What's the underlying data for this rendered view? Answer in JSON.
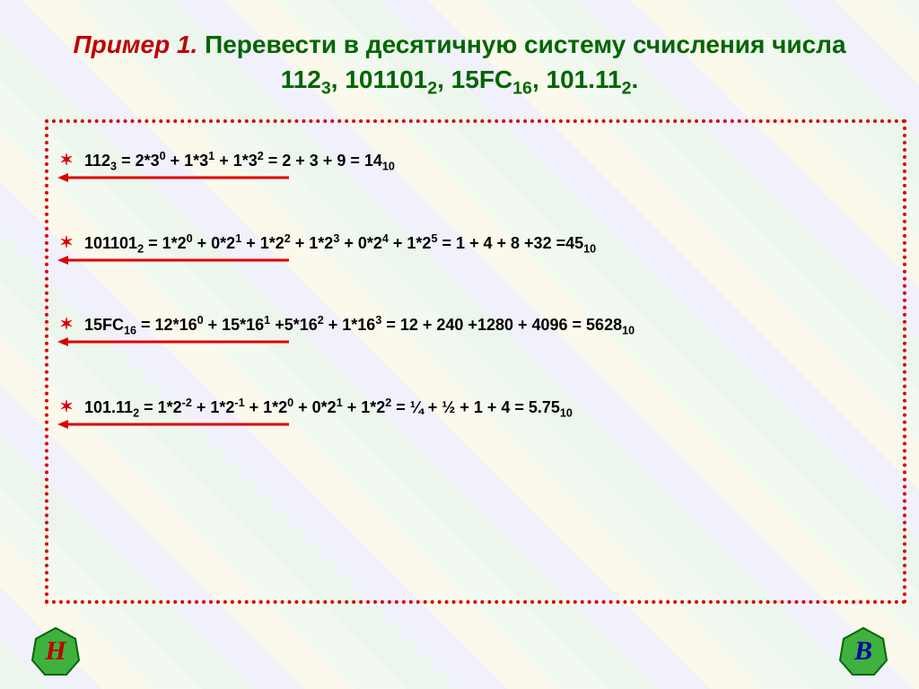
{
  "title": {
    "lead": "Пример 1.",
    "rest_html": "  Перевести  в  десятичную  систему счисления числа 112<span class='sub'>3</span>, 101101<span class='sub'>2</span>, 15FC<span class='sub'>16</span>, 101.11<span class='sub'>2</span>."
  },
  "lines": [
    "112<span class='sub'>3</span> = 2*3<span class='sup'>0</span> + 1*3<span class='sup'>1</span> + 1*3<span class='sup'>2</span> = 2 + 3 + 9 = 14<span class='sub'>10</span>",
    "101101<span class='sub'>2</span> = 1*2<span class='sup'>0</span> + 0*2<span class='sup'>1</span> + 1*2<span class='sup'>2</span> + 1*2<span class='sup'>3</span> + 0*2<span class='sup'>4</span> + 1*2<span class='sup'>5</span> = 1 + 4 + 8 +32 =45<span class='sub'>10</span>",
    "15FC<span class='sub'>16</span> = 12*16<span class='sup'>0</span> + 15*16<span class='sup'>1</span> +5*16<span class='sup'>2</span> + 1*16<span class='sup'>3</span> = 12 + 240 +1280 + 4096 = 5628<span class='sub'>10</span>",
    "101.11<span class='sub'>2</span> = 1*2<span class='sup'>-2</span> + 1*2<span class='sup'>-1</span> + 1*2<span class='sup'>0</span> + 0*2<span class='sup'>1</span> + 1*2<span class='sup'>2</span> = ¼ + ½ + 1 + 4 = 5.75<span class='sub'>10</span>"
  ],
  "nav": {
    "left": "Н",
    "right": "В"
  },
  "colors": {
    "title_lead": "#c00000",
    "title_rest": "#006600",
    "border": "#dd0000",
    "arrow": "#dd0000",
    "text": "#000000",
    "badge_left_fill": "#3fb13f",
    "badge_right_fill": "#3fb13f",
    "badge_stroke": "#006600"
  }
}
